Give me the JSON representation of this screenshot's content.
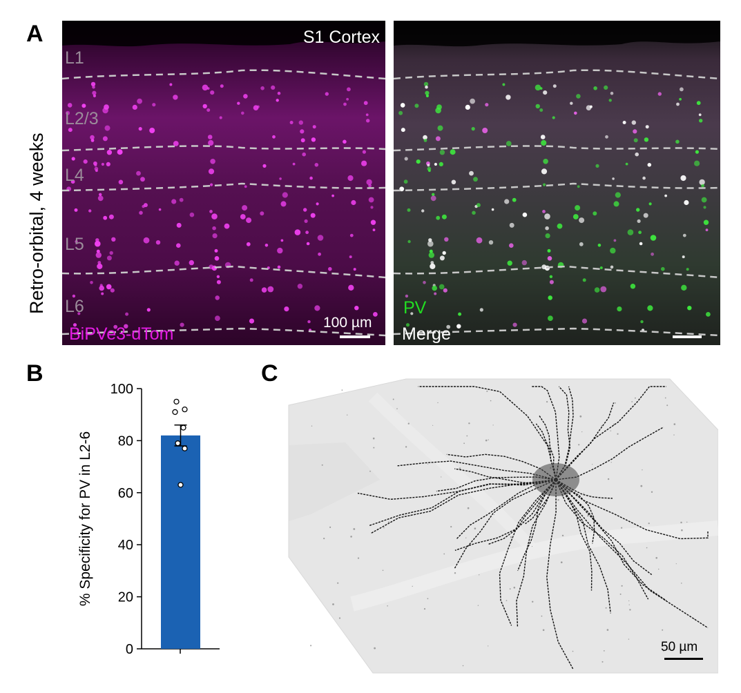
{
  "panels": {
    "a": "A",
    "b": "B",
    "c": "C"
  },
  "figure_a": {
    "side_label": "Retro-orbital, 4 weeks",
    "left_image": {
      "region": "S1 Cortex",
      "layers": [
        "L1",
        "L2/3",
        "L4",
        "L5",
        "L6"
      ],
      "channel": "BiPVe3-dTom",
      "channel_color": "#e21ce2",
      "scale_label": "100 µm"
    },
    "right_image": {
      "channel": "PV",
      "channel_color": "#22dd22",
      "merge_label": "Merge"
    }
  },
  "figure_c": {
    "scale_label": "50 µm"
  },
  "chart_data": {
    "type": "bar",
    "categories": [
      ""
    ],
    "values": [
      82
    ],
    "error": 4,
    "points": [
      95,
      92,
      91,
      85,
      79,
      77,
      63
    ],
    "ylabel": "% Specificity for  PV in L2-6",
    "ylim": [
      0,
      100
    ],
    "yticks": [
      0,
      20,
      40,
      60,
      80,
      100
    ],
    "bar_color": "#1b62b3"
  }
}
